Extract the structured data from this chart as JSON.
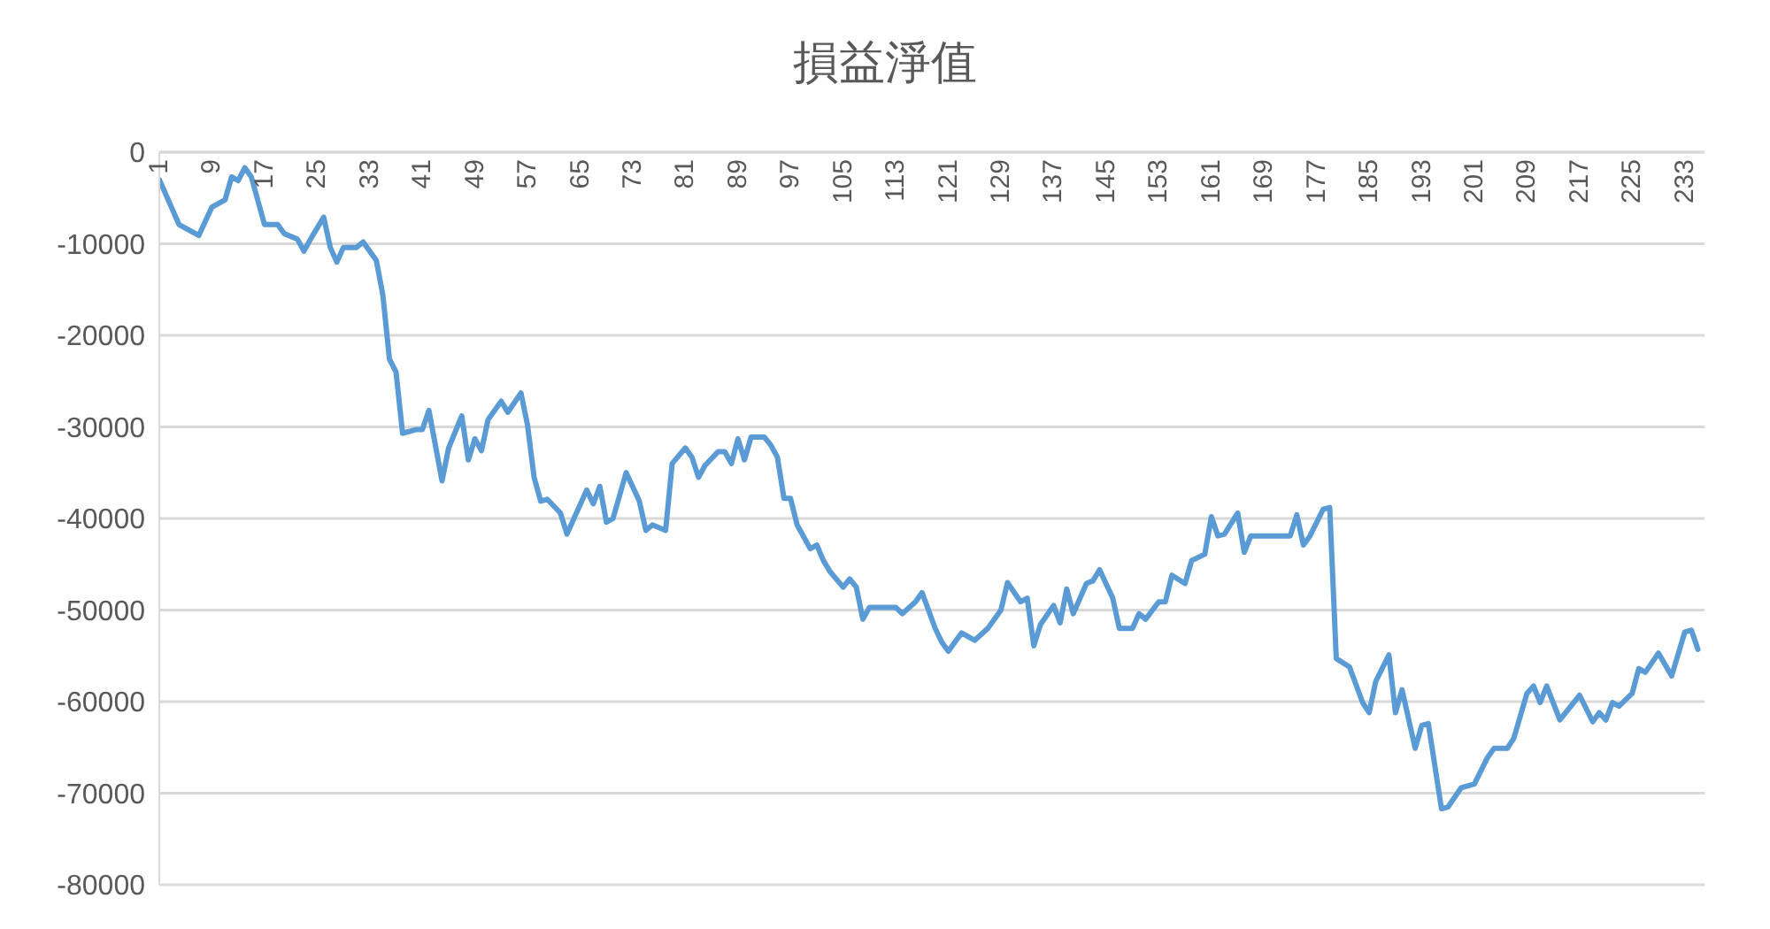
{
  "chart_data": {
    "type": "line",
    "title": "損益淨值",
    "xlim": [
      1,
      236
    ],
    "xticks": [
      1,
      9,
      17,
      25,
      33,
      41,
      49,
      57,
      65,
      73,
      81,
      89,
      97,
      105,
      113,
      121,
      129,
      137,
      145,
      153,
      161,
      169,
      177,
      185,
      193,
      201,
      209,
      217,
      225,
      233
    ],
    "ylim": [
      -80000,
      0
    ],
    "yticks": [
      -80000,
      -70000,
      -60000,
      -50000,
      -40000,
      -30000,
      -20000,
      -10000,
      0
    ],
    "grid": "y",
    "line_style": "solid",
    "series": [
      {
        "color": "#5b9bd5",
        "x": [
          1,
          4,
          7,
          9,
          11,
          12,
          13,
          14,
          15,
          17,
          19,
          20,
          22,
          23,
          24,
          26,
          27,
          28,
          29,
          31,
          32,
          34,
          35,
          36,
          37,
          38,
          40,
          41,
          42,
          44,
          45,
          47,
          48,
          49,
          50,
          51,
          53,
          54,
          56,
          57,
          58,
          59,
          60,
          62,
          63,
          66,
          67,
          68,
          69,
          70,
          72,
          74,
          75,
          76,
          78,
          79,
          81,
          82,
          83,
          84,
          86,
          87,
          88,
          89,
          90,
          91,
          93,
          94,
          95,
          96,
          97,
          98,
          100,
          101,
          102,
          103,
          105,
          106,
          107,
          108,
          109,
          113,
          114,
          116,
          117,
          119,
          120,
          121,
          123,
          125,
          127,
          129,
          130,
          132,
          133,
          134,
          135,
          137,
          138,
          139,
          140,
          142,
          143,
          144,
          146,
          147,
          149,
          150,
          151,
          153,
          154,
          155,
          157,
          158,
          160,
          161,
          162,
          163,
          165,
          166,
          167,
          173,
          174,
          175,
          176,
          178,
          179,
          180,
          182,
          184,
          185,
          186,
          188,
          189,
          190,
          192,
          193,
          194,
          196,
          197,
          199,
          201,
          203,
          204,
          206,
          207,
          209,
          210,
          211,
          212,
          214,
          217,
          219,
          220,
          221,
          222,
          223,
          225,
          226,
          227,
          229,
          231,
          233,
          234,
          235
        ],
        "values": [
          -3000,
          -7900,
          -9100,
          -6000,
          -5200,
          -2700,
          -3100,
          -1700,
          -2700,
          -7900,
          -7900,
          -8900,
          -9500,
          -10800,
          -9500,
          -7100,
          -10400,
          -12000,
          -10400,
          -10400,
          -9800,
          -11800,
          -15600,
          -22600,
          -24000,
          -30700,
          -30300,
          -30300,
          -28200,
          -35900,
          -32300,
          -28800,
          -33600,
          -31300,
          -32600,
          -29200,
          -27200,
          -28400,
          -26300,
          -29800,
          -35500,
          -38100,
          -37900,
          -39400,
          -41700,
          -36900,
          -38400,
          -36500,
          -40400,
          -40000,
          -35000,
          -38100,
          -41300,
          -40700,
          -41300,
          -34000,
          -32300,
          -33300,
          -35500,
          -34200,
          -32700,
          -32700,
          -34000,
          -31300,
          -33600,
          -31100,
          -31100,
          -32000,
          -33300,
          -37800,
          -37800,
          -40700,
          -43300,
          -42900,
          -44600,
          -45800,
          -47500,
          -46600,
          -47500,
          -51000,
          -49700,
          -49700,
          -50400,
          -49100,
          -48100,
          -52000,
          -53500,
          -54500,
          -52500,
          -53300,
          -52000,
          -50000,
          -47000,
          -49100,
          -48700,
          -53900,
          -51600,
          -49500,
          -51400,
          -47700,
          -50400,
          -47100,
          -46800,
          -45600,
          -48700,
          -52000,
          -52000,
          -50400,
          -51000,
          -49100,
          -49100,
          -46200,
          -47100,
          -44600,
          -43900,
          -39800,
          -41900,
          -41700,
          -39400,
          -43700,
          -41900,
          -41900,
          -39600,
          -42900,
          -41900,
          -39000,
          -38800,
          -55300,
          -56200,
          -60100,
          -61200,
          -57800,
          -54900,
          -61200,
          -58700,
          -65100,
          -62600,
          -62400,
          -71700,
          -71500,
          -69400,
          -69000,
          -66100,
          -65100,
          -65100,
          -64000,
          -59100,
          -58300,
          -60100,
          -58300,
          -62000,
          -59300,
          -62200,
          -61200,
          -62000,
          -60100,
          -60500,
          -59100,
          -56400,
          -56800,
          -54700,
          -57200,
          -52400,
          -52200,
          -54300
        ]
      }
    ]
  }
}
